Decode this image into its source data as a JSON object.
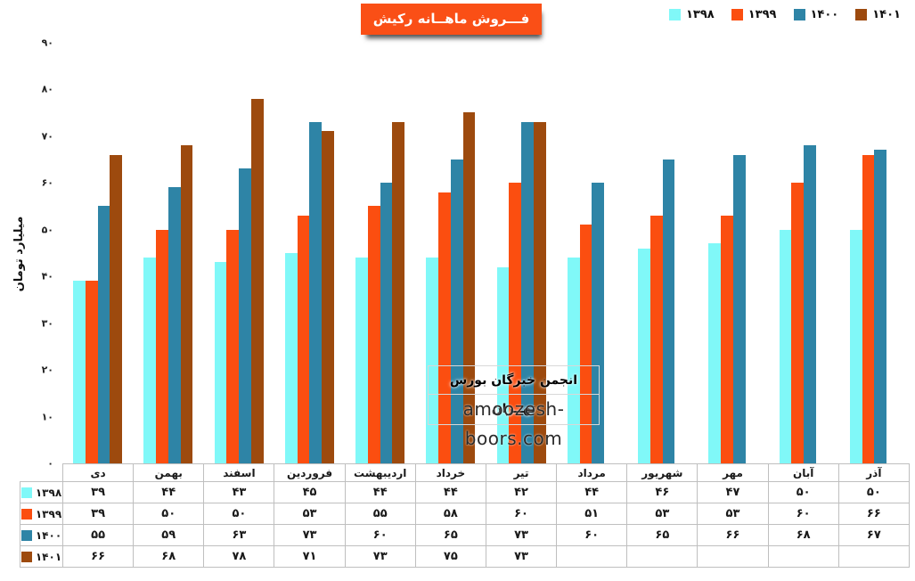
{
  "header": {
    "title": "فـــروش ماهــانه رکیش",
    "title_bg": "#fa4f16"
  },
  "watermark": {
    "org": "انجمن خبرگان بورس تهــران",
    "site": "amoozesh-boors.com"
  },
  "chart_data": {
    "type": "bar",
    "title": "فـــروش ماهــانه رکیش",
    "xlabel": "",
    "ylabel": "میلیارد تومان",
    "ylim": [
      0,
      90
    ],
    "ytick_step": 10,
    "grid": false,
    "legend_position": "top-right",
    "number_locale": "fa",
    "categories": [
      "دی",
      "بهمن",
      "اسفند",
      "فروردین",
      "اردیبهشت",
      "خرداد",
      "تیر",
      "مرداد",
      "شهریور",
      "مهر",
      "آبان",
      "آذر"
    ],
    "series": [
      {
        "name": "۱۳۹۸",
        "color": "#80f8f8",
        "values": [
          39,
          44,
          43,
          45,
          44,
          44,
          42,
          44,
          46,
          47,
          50,
          50
        ]
      },
      {
        "name": "۱۳۹۹",
        "color": "#fb4e10",
        "values": [
          39,
          50,
          50,
          53,
          55,
          58,
          60,
          51,
          53,
          53,
          60,
          66
        ]
      },
      {
        "name": "۱۴۰۰",
        "color": "#2e84a6",
        "values": [
          55,
          59,
          63,
          73,
          60,
          65,
          73,
          60,
          65,
          66,
          68,
          67
        ]
      },
      {
        "name": "۱۴۰۱",
        "color": "#9d4a0e",
        "values": [
          66,
          68,
          78,
          71,
          73,
          75,
          73,
          null,
          null,
          null,
          null,
          null
        ]
      }
    ],
    "table_shows_series_rows": true
  }
}
